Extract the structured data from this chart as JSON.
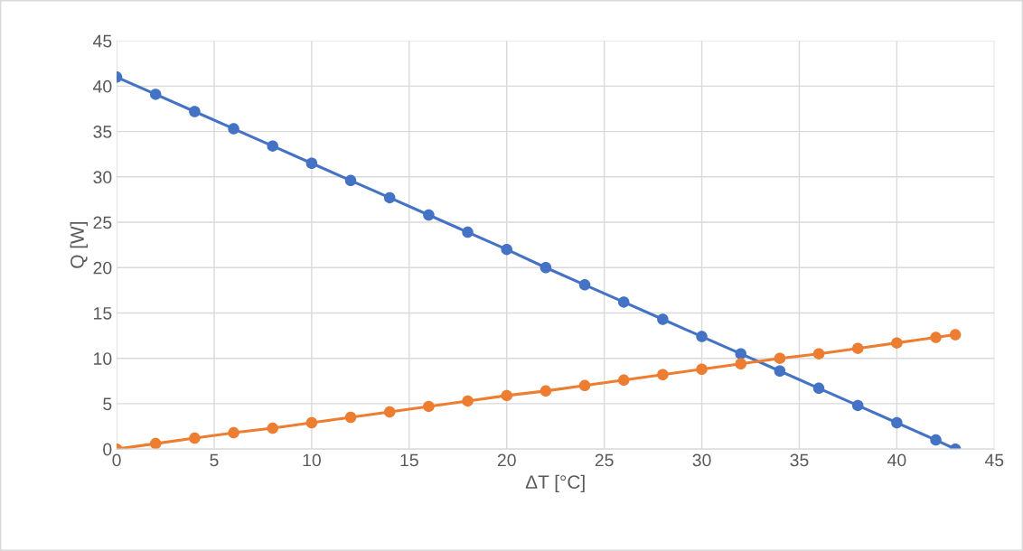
{
  "chart_data": {
    "type": "line",
    "xlabel": "ΔT [°C]",
    "ylabel": "Q [W]",
    "x": [
      0,
      2,
      4,
      6,
      8,
      10,
      12,
      14,
      16,
      18,
      20,
      22,
      24,
      26,
      28,
      30,
      32,
      34,
      36,
      38,
      40,
      42,
      43
    ],
    "series": [
      {
        "color": "#4472c4",
        "values": [
          41,
          39.1,
          37.2,
          35.3,
          33.4,
          31.5,
          29.6,
          27.7,
          25.8,
          23.9,
          22.0,
          20.0,
          18.1,
          16.2,
          14.3,
          12.4,
          10.5,
          8.6,
          6.7,
          4.8,
          2.9,
          1.0,
          0
        ]
      },
      {
        "color": "#ed7d31",
        "values": [
          0,
          0.6,
          1.2,
          1.8,
          2.3,
          2.9,
          3.5,
          4.1,
          4.7,
          5.3,
          5.9,
          6.4,
          7.0,
          7.6,
          8.2,
          8.8,
          9.4,
          10.0,
          10.5,
          11.1,
          11.7,
          12.3,
          12.6
        ]
      }
    ],
    "xlim": [
      0,
      45
    ],
    "xticks": [
      0,
      5,
      10,
      15,
      20,
      25,
      30,
      35,
      40,
      45
    ],
    "ylim": [
      0,
      45
    ],
    "yticks": [
      0,
      5,
      10,
      15,
      20,
      25,
      30,
      35,
      40,
      45
    ],
    "grid": true,
    "marker": "circle",
    "line_style": "solid",
    "legend": false
  }
}
